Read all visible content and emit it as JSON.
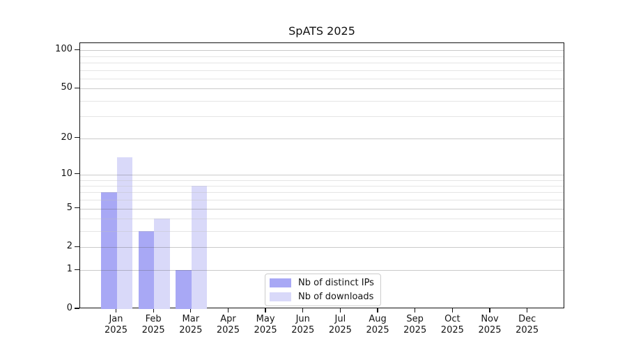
{
  "chart_data": {
    "type": "bar",
    "title": "SpATS 2025",
    "categories": [
      "Jan",
      "Feb",
      "Mar",
      "Apr",
      "May",
      "Jun",
      "Jul",
      "Aug",
      "Sep",
      "Oct",
      "Nov",
      "Dec"
    ],
    "x_year_label": "2025",
    "series": [
      {
        "name": "Nb of distinct IPs",
        "color": "#a8a8f5",
        "values": [
          7,
          3,
          1,
          0,
          0,
          0,
          0,
          0,
          0,
          0,
          0,
          0
        ]
      },
      {
        "name": "Nb of downloads",
        "color": "#d9d9f9",
        "values": [
          14,
          4,
          8,
          0,
          0,
          0,
          0,
          0,
          0,
          0,
          0,
          0
        ]
      }
    ],
    "yscale": "log1p",
    "ylim": [
      0,
      112
    ],
    "yticks_major": [
      0,
      1,
      2,
      5,
      10,
      20,
      50,
      100
    ],
    "yticks_minor": [
      3,
      4,
      6,
      7,
      8,
      9,
      30,
      40,
      60,
      70,
      80,
      90
    ],
    "grid": "horizontal",
    "legend_position": "bottom-center-inside"
  }
}
